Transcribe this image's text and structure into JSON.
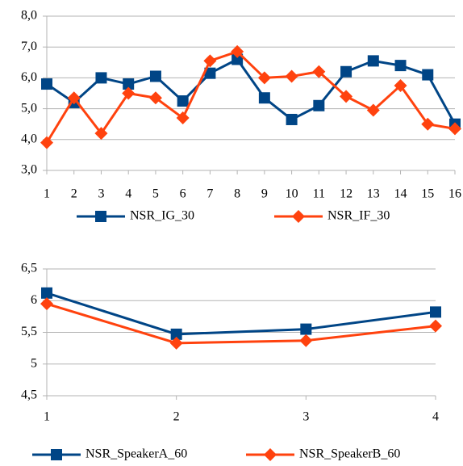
{
  "chart_data": [
    {
      "type": "line",
      "x": [
        1,
        2,
        3,
        4,
        5,
        6,
        7,
        8,
        9,
        10,
        11,
        12,
        13,
        14,
        15,
        16
      ],
      "xlim": [
        1,
        16
      ],
      "xticks": [
        1,
        2,
        3,
        4,
        5,
        6,
        7,
        8,
        9,
        10,
        11,
        12,
        13,
        14,
        15,
        16
      ],
      "ylim": [
        3,
        8
      ],
      "yticks": [
        {
          "value": 3,
          "label": "3,0"
        },
        {
          "value": 4,
          "label": "4,0"
        },
        {
          "value": 5,
          "label": "5,0"
        },
        {
          "value": 6,
          "label": "6,0"
        },
        {
          "value": 7,
          "label": "7,0"
        },
        {
          "value": 8,
          "label": "8,0"
        }
      ],
      "grid": true,
      "series": [
        {
          "name": "NSR_IG_30",
          "color": "#004586",
          "marker": "square",
          "values": [
            5.8,
            5.2,
            6.0,
            5.8,
            6.05,
            5.25,
            6.15,
            6.6,
            5.35,
            4.65,
            5.1,
            6.2,
            6.55,
            6.4,
            6.1,
            4.5
          ]
        },
        {
          "name": "NSR_IF_30",
          "color": "#ff420e",
          "marker": "diamond",
          "values": [
            3.9,
            5.35,
            4.2,
            5.5,
            5.35,
            4.7,
            6.55,
            6.85,
            6.0,
            6.05,
            6.2,
            5.4,
            4.95,
            5.75,
            4.5,
            4.35
          ]
        }
      ]
    },
    {
      "type": "line",
      "x": [
        1,
        2,
        3,
        4
      ],
      "xlim": [
        1,
        4
      ],
      "xticks": [
        1,
        2,
        3,
        4
      ],
      "ylim": [
        4.5,
        6.5
      ],
      "yticks": [
        {
          "value": 4.5,
          "label": "4,5"
        },
        {
          "value": 5,
          "label": "5"
        },
        {
          "value": 5.5,
          "label": "5,5"
        },
        {
          "value": 6,
          "label": "6"
        },
        {
          "value": 6.5,
          "label": "6,5"
        }
      ],
      "grid": true,
      "series": [
        {
          "name": "NSR_SpeakerA_60",
          "color": "#004586",
          "marker": "square",
          "values": [
            6.12,
            5.47,
            5.55,
            5.82
          ]
        },
        {
          "name": "NSR_SpeakerB_60",
          "color": "#ff420e",
          "marker": "diamond",
          "values": [
            5.95,
            5.33,
            5.37,
            5.6
          ]
        }
      ]
    }
  ]
}
